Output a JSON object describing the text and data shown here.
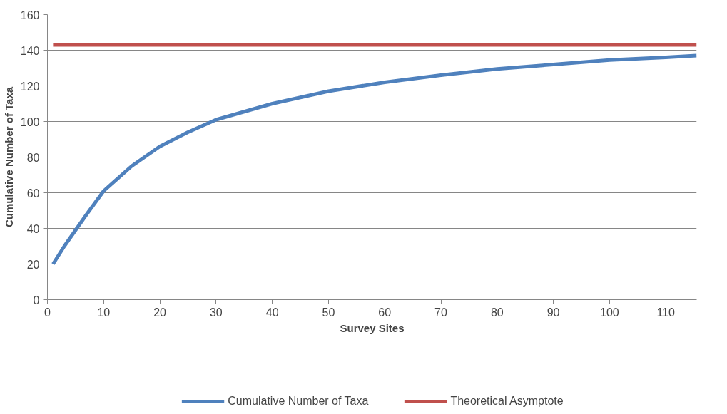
{
  "chart_data": {
    "type": "line",
    "xlabel": "Survey Sites",
    "ylabel": "Cumulative Number of Taxa",
    "xlim": [
      0,
      115.5
    ],
    "ylim": [
      0,
      160
    ],
    "xticks": [
      0,
      10,
      20,
      30,
      40,
      50,
      60,
      70,
      80,
      90,
      100,
      110
    ],
    "yticks": [
      0,
      20,
      40,
      60,
      80,
      100,
      120,
      140,
      160
    ],
    "grid": "y",
    "legend": "bottom",
    "marker": "none",
    "line_style": "solid",
    "series": [
      {
        "name": "Cumulative Number of Taxa",
        "color": "#4f81bd",
        "x": [
          1,
          2,
          3,
          5,
          7,
          10,
          15,
          20,
          25,
          30,
          40,
          50,
          60,
          70,
          80,
          90,
          100,
          110,
          115.5
        ],
        "values": [
          20,
          25,
          30,
          39,
          48,
          61,
          75,
          86,
          94,
          101,
          110,
          117,
          122,
          126,
          129.5,
          132,
          134.5,
          136,
          137
        ]
      },
      {
        "name": "Theoretical Asymptote",
        "color": "#c0504d",
        "x": [
          1,
          115.5
        ],
        "values": [
          143,
          143
        ]
      }
    ]
  }
}
